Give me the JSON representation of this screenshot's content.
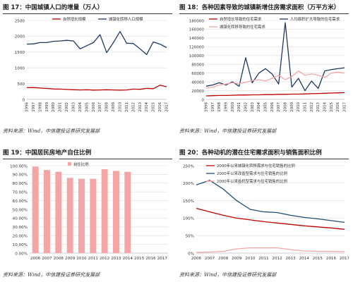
{
  "panels": [
    {
      "title": "图 17：中国城镇人口的增量（万人）",
      "source": "资料来源：Wind，中信建投证券研究发展部"
    },
    {
      "title": "图 18：各种因素导致的城镇新增住房需求面积（万平方米）",
      "source": "资料来源：Wind，中信建投证券研究发展部"
    },
    {
      "title": "图 19：中国居民房地产自住比例",
      "source": "资料来源：Wind，中信建投证券研究发展部"
    },
    {
      "title": "图 20：各种动机的潜在住宅需求面积与销售面积比例",
      "source": "资料来源：Wind，中信建投证券研究发展部"
    }
  ],
  "chart_data": [
    {
      "type": "line",
      "title": "中国城镇人口的增量（万人）",
      "x": [
        "1996",
        "1997",
        "1998",
        "1999",
        "2000",
        "2001",
        "2002",
        "2003",
        "2004",
        "2005",
        "2006",
        "2007",
        "2008",
        "2009",
        "2010",
        "2011",
        "2012",
        "2013",
        "2014",
        "2015",
        "2016",
        "2017"
      ],
      "ylim": [
        0,
        2500
      ],
      "yticks": [
        "0",
        "500",
        "1000",
        "1500",
        "2000",
        "2500"
      ],
      "legend_position": "top",
      "grid": true,
      "series": [
        {
          "name": "自然增长规模",
          "color": "#c00000",
          "values": [
            370,
            375,
            360,
            345,
            330,
            325,
            315,
            305,
            300,
            305,
            295,
            300,
            305,
            300,
            295,
            300,
            325,
            320,
            350,
            340,
            450,
            400
          ]
        },
        {
          "name": "城镇化转移人口规模",
          "color": "#1f3864",
          "values": [
            1750,
            1760,
            1800,
            1800,
            1840,
            1850,
            1870,
            1850,
            1600,
            1700,
            1800,
            2050,
            1480,
            1800,
            2150,
            1780,
            1770,
            1600,
            1420,
            1820,
            1750,
            1640
          ]
        }
      ]
    },
    {
      "type": "line",
      "title": "各种因素导致的城镇新增住房需求面积（万平方米）",
      "x": [
        "1996",
        "1997",
        "1998",
        "1999",
        "2000",
        "2001",
        "2002",
        "2003",
        "2004",
        "2005",
        "2006",
        "2007",
        "2008",
        "2009",
        "2010",
        "2011",
        "2012",
        "2013",
        "2014",
        "2015",
        "2016",
        "2017"
      ],
      "ylim": [
        0,
        180000
      ],
      "yticks": [
        "0",
        "20000",
        "40000",
        "60000",
        "80000",
        "100000",
        "120000",
        "140000",
        "160000",
        "180000"
      ],
      "legend_position": "top",
      "grid": true,
      "series": [
        {
          "name": "自然增长导致的住宅需求",
          "color": "#c00000",
          "values": [
            8000,
            8500,
            9000,
            9000,
            9500,
            10000,
            10000,
            10500,
            10500,
            11000,
            11000,
            11500,
            11500,
            12000,
            12000,
            12500,
            13000,
            13500,
            14000,
            14500,
            15000,
            15500
          ]
        },
        {
          "name": "人均面积扩大导致的住宅需求",
          "color": "#1f3864",
          "values": [
            30000,
            33000,
            38000,
            33000,
            40000,
            30000,
            95000,
            38000,
            60000,
            70000,
            58000,
            35000,
            175000,
            28000,
            48000,
            20000,
            42000,
            25000,
            65000,
            68000,
            70000,
            72000
          ]
        },
        {
          "name": "城镇化转移导致的住宅需求",
          "color": "#f4a6a6",
          "values": [
            26000,
            28000,
            33000,
            35000,
            38000,
            36000,
            39000,
            43000,
            45000,
            42000,
            48000,
            55000,
            45000,
            52000,
            65000,
            55000,
            58000,
            55000,
            50000,
            60000,
            62000,
            60000
          ]
        }
      ]
    },
    {
      "type": "bar",
      "title": "中国居民房地产自住比例",
      "categories": [
        "2006",
        "2007",
        "2008",
        "2009",
        "2010",
        "2011",
        "2012",
        "2013",
        "2014",
        "2015",
        "2016",
        "2017"
      ],
      "ylim": [
        0,
        100
      ],
      "yticks": [
        "0.00%",
        "10.00%",
        "20.00%",
        "30.00%",
        "40.00%",
        "50.00%",
        "60.00%",
        "70.00%",
        "80.00%",
        "90.00%",
        "100.00%"
      ],
      "legend_position": "top",
      "grid": true,
      "series": [
        {
          "name": "自住比例",
          "color": "#f4a6a6",
          "values": [
            99,
            95,
            93,
            86,
            85,
            85,
            96,
            94,
            93,
            null,
            null,
            null
          ]
        }
      ]
    },
    {
      "type": "line",
      "title": "各种动机的潜在住宅需求面积与销售面积比例",
      "x": [
        "2006",
        "2007",
        "2008",
        "2009",
        "2010",
        "2011",
        "2012",
        "2013",
        "2014",
        "2015",
        "2016",
        "2017"
      ],
      "ylim": [
        0,
        250
      ],
      "yticks": [
        "0%",
        "50%",
        "100%",
        "150%",
        "200%",
        "250%"
      ],
      "legend_position": "top-left",
      "grid": true,
      "series": [
        {
          "name": "2000年以来城镇化转移需求与住宅销售的比例",
          "color": "#c00000",
          "values": [
            128,
            118,
            108,
            100,
            95,
            90,
            86,
            82,
            78,
            75,
            72,
            68
          ]
        },
        {
          "name": "2000年以来改善型需求与住宅销售的比例",
          "color": "#1f4e79",
          "values": [
            195,
            208,
            183,
            150,
            125,
            118,
            116,
            108,
            102,
            98,
            93,
            88
          ]
        },
        {
          "name": "2000年以来投机型需求与住宅销售的比例",
          "color": "#f4a6a6",
          "values": [
            2,
            3,
            5,
            12,
            15,
            15,
            15,
            10,
            6,
            5,
            5,
            4
          ]
        }
      ]
    }
  ]
}
